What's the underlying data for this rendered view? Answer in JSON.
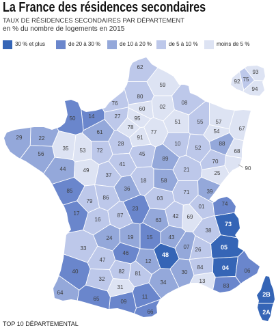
{
  "title": "La France des résidences secondaires",
  "subtitle": "TAUX DE RÉSIDENCES SECONDAIRES PAR DÉPARTEMENT",
  "unit_note": "en % du nombre de logements en 2015",
  "legend": [
    {
      "label": "30 % et plus",
      "color": "#3565b6"
    },
    {
      "label": "de 20 à 30 %",
      "color": "#6a86cc"
    },
    {
      "label": "de 10 à 20 %",
      "color": "#94a8da"
    },
    {
      "label": "de 5 à 10 %",
      "color": "#bdc8ea"
    },
    {
      "label": "moins de 5 %",
      "color": "#dde3f3"
    }
  ],
  "map": {
    "departments": [
      {
        "code": "01",
        "rate_class": 3
      },
      {
        "code": "02",
        "rate_class": 4
      },
      {
        "code": "03",
        "rate_class": 3
      },
      {
        "code": "04",
        "rate_class": 0
      },
      {
        "code": "05",
        "rate_class": 0
      },
      {
        "code": "06",
        "rate_class": 1
      },
      {
        "code": "07",
        "rate_class": 2
      },
      {
        "code": "08",
        "rate_class": 3
      },
      {
        "code": "09",
        "rate_class": 1
      },
      {
        "code": "10",
        "rate_class": 3
      },
      {
        "code": "11",
        "rate_class": 1
      },
      {
        "code": "12",
        "rate_class": 2
      },
      {
        "code": "13",
        "rate_class": 4
      },
      {
        "code": "14",
        "rate_class": 1
      },
      {
        "code": "15",
        "rate_class": 1
      },
      {
        "code": "16",
        "rate_class": 3
      },
      {
        "code": "17",
        "rate_class": 1
      },
      {
        "code": "18",
        "rate_class": 3
      },
      {
        "code": "19",
        "rate_class": 2
      },
      {
        "code": "21",
        "rate_class": 3
      },
      {
        "code": "22",
        "rate_class": 2
      },
      {
        "code": "23",
        "rate_class": 1
      },
      {
        "code": "24",
        "rate_class": 2
      },
      {
        "code": "25",
        "rate_class": 4
      },
      {
        "code": "26",
        "rate_class": 3
      },
      {
        "code": "27",
        "rate_class": 3
      },
      {
        "code": "28",
        "rate_class": 3
      },
      {
        "code": "29",
        "rate_class": 2
      },
      {
        "code": "2A",
        "rate_class": 0
      },
      {
        "code": "2B",
        "rate_class": 0
      },
      {
        "code": "30",
        "rate_class": 2
      },
      {
        "code": "31",
        "rate_class": 4
      },
      {
        "code": "32",
        "rate_class": 3
      },
      {
        "code": "33",
        "rate_class": 3
      },
      {
        "code": "34",
        "rate_class": 2
      },
      {
        "code": "35",
        "rate_class": 4
      },
      {
        "code": "36",
        "rate_class": 2
      },
      {
        "code": "37",
        "rate_class": 3
      },
      {
        "code": "38",
        "rate_class": 3
      },
      {
        "code": "39",
        "rate_class": 2
      },
      {
        "code": "40",
        "rate_class": 1
      },
      {
        "code": "41",
        "rate_class": 3
      },
      {
        "code": "42",
        "rate_class": 3
      },
      {
        "code": "43",
        "rate_class": 2
      },
      {
        "code": "44",
        "rate_class": 2
      },
      {
        "code": "45",
        "rate_class": 3
      },
      {
        "code": "46",
        "rate_class": 1
      },
      {
        "code": "47",
        "rate_class": 3
      },
      {
        "code": "48",
        "rate_class": 0
      },
      {
        "code": "49",
        "rate_class": 4
      },
      {
        "code": "50",
        "rate_class": 1
      },
      {
        "code": "51",
        "rate_class": 4
      },
      {
        "code": "52",
        "rate_class": 3
      },
      {
        "code": "53",
        "rate_class": 4
      },
      {
        "code": "54",
        "rate_class": 4
      },
      {
        "code": "55",
        "rate_class": 3
      },
      {
        "code": "56",
        "rate_class": 2
      },
      {
        "code": "57",
        "rate_class": 4
      },
      {
        "code": "58",
        "rate_class": 2
      },
      {
        "code": "59",
        "rate_class": 4
      },
      {
        "code": "60",
        "rate_class": 4
      },
      {
        "code": "61",
        "rate_class": 2
      },
      {
        "code": "62",
        "rate_class": 3
      },
      {
        "code": "63",
        "rate_class": 2
      },
      {
        "code": "64",
        "rate_class": 2
      },
      {
        "code": "65",
        "rate_class": 1
      },
      {
        "code": "66",
        "rate_class": 1
      },
      {
        "code": "67",
        "rate_class": 4
      },
      {
        "code": "68",
        "rate_class": 4
      },
      {
        "code": "69",
        "rate_class": 4
      },
      {
        "code": "70",
        "rate_class": 3
      },
      {
        "code": "71",
        "rate_class": 3
      },
      {
        "code": "72",
        "rate_class": 3
      },
      {
        "code": "73",
        "rate_class": 0
      },
      {
        "code": "74",
        "rate_class": 1
      },
      {
        "code": "75",
        "rate_class": 3
      },
      {
        "code": "76",
        "rate_class": 3
      },
      {
        "code": "77",
        "rate_class": 4
      },
      {
        "code": "78",
        "rate_class": 4
      },
      {
        "code": "79",
        "rate_class": 3
      },
      {
        "code": "80",
        "rate_class": 3
      },
      {
        "code": "81",
        "rate_class": 3
      },
      {
        "code": "82",
        "rate_class": 3
      },
      {
        "code": "83",
        "rate_class": 1
      },
      {
        "code": "84",
        "rate_class": 3
      },
      {
        "code": "85",
        "rate_class": 1
      },
      {
        "code": "86",
        "rate_class": 3
      },
      {
        "code": "87",
        "rate_class": 3
      },
      {
        "code": "88",
        "rate_class": 2
      },
      {
        "code": "89",
        "rate_class": 2
      },
      {
        "code": "90",
        "rate_class": 4
      },
      {
        "code": "91",
        "rate_class": 4
      },
      {
        "code": "92",
        "rate_class": 4
      },
      {
        "code": "93",
        "rate_class": 4
      },
      {
        "code": "94",
        "rate_class": 4
      },
      {
        "code": "95",
        "rate_class": 4
      }
    ]
  },
  "footer": {
    "heading": "TOP 10 DÉPARTEMENTAL"
  }
}
